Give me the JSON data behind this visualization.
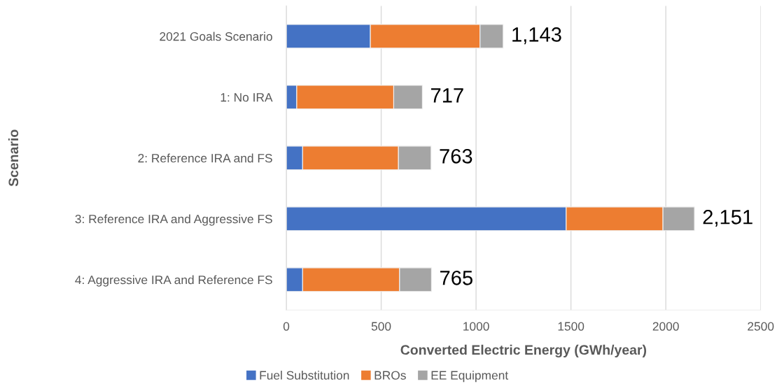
{
  "chart_data": {
    "type": "bar",
    "orientation": "horizontal",
    "stacked": true,
    "categories": [
      "2021 Goals Scenario",
      "1: No IRA",
      "2: Reference IRA and FS",
      "3: Reference IRA and Aggressive FS",
      "4: Aggressive IRA and Reference FS"
    ],
    "series": [
      {
        "name": "Fuel Substitution",
        "color": "#4472c4",
        "values": [
          443,
          55,
          86,
          1475,
          86
        ]
      },
      {
        "name": "BROs",
        "color": "#ed7d31",
        "values": [
          578,
          511,
          505,
          510,
          511
        ]
      },
      {
        "name": "EE Equipment",
        "color": "#a5a5a5",
        "values": [
          122,
          151,
          172,
          166,
          168
        ]
      }
    ],
    "totals": [
      "1,143",
      "717",
      "763",
      "2,151",
      "765"
    ],
    "xlabel": "Converted Electric Energy (GWh/year)",
    "ylabel": "Scenario",
    "xlim": [
      0,
      2500
    ],
    "xticks": [
      0,
      500,
      1000,
      1500,
      2000,
      2500
    ],
    "grid": "x",
    "legend": "bottom"
  }
}
